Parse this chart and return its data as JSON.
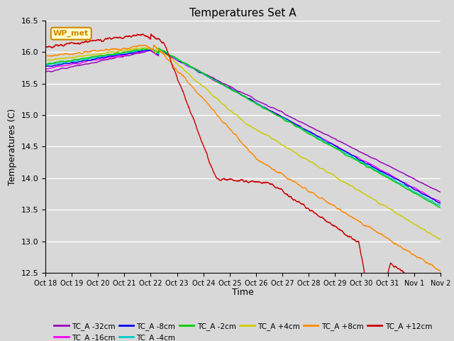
{
  "title": "Temperatures Set A",
  "ylabel": "Temperatures (C)",
  "xlabel": "Time",
  "ylim": [
    12.5,
    16.5
  ],
  "background_color": "#d8d8d8",
  "plot_bg_color": "#d8d8d8",
  "annotation_text": "WP_met",
  "annotation_box_color": "#ffffcc",
  "annotation_box_edge_color": "#cc8800",
  "series": [
    {
      "label": "TC_A -32cm",
      "color": "#9900bb"
    },
    {
      "label": "TC_A -16cm",
      "color": "#ff00ff"
    },
    {
      "label": "TC_A -8cm",
      "color": "#0000ee"
    },
    {
      "label": "TC_A -4cm",
      "color": "#00cccc"
    },
    {
      "label": "TC_A -2cm",
      "color": "#00cc00"
    },
    {
      "label": "TC_A +4cm",
      "color": "#cccc00"
    },
    {
      "label": "TC_A +8cm",
      "color": "#ff8800"
    },
    {
      "label": "TC_A +12cm",
      "color": "#cc0000"
    }
  ],
  "x_tick_labels": [
    "Oct 18",
    "Oct 19",
    "Oct 20",
    "Oct 21",
    "Oct 22",
    "Oct 23",
    "Oct 24",
    "Oct 25",
    "Oct 26",
    "Oct 27",
    "Oct 28",
    "Oct 29",
    "Oct 30",
    "Oct 31",
    "Nov 1",
    "Nov 2"
  ],
  "yticks": [
    12.5,
    13.0,
    13.5,
    14.0,
    14.5,
    15.0,
    15.5,
    16.0,
    16.5
  ],
  "n_ticks": 16,
  "n_days": 15,
  "n_points": 2160,
  "figsize": [
    6.4,
    4.8
  ],
  "dpi": 100
}
